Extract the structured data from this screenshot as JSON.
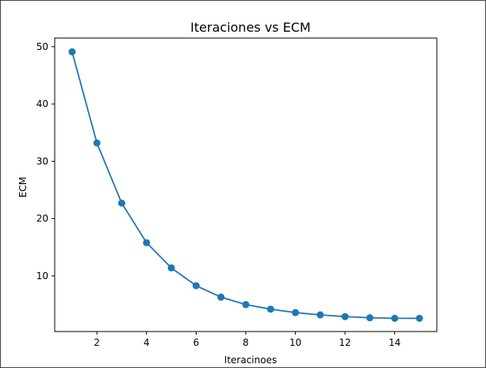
{
  "chart_data": {
    "type": "line",
    "title": "Iteraciones vs  ECM",
    "xlabel": "Iteracinoes",
    "ylabel": "ECM",
    "xlim": [
      0.3,
      15.7
    ],
    "ylim": [
      0.3,
      51.5
    ],
    "xticks": [
      2,
      4,
      6,
      8,
      10,
      12,
      14
    ],
    "yticks": [
      10,
      20,
      30,
      40,
      50
    ],
    "grid": false,
    "marker": "circle",
    "series": [
      {
        "color": "#1f77b4",
        "x": [
          1,
          2,
          3,
          4,
          5,
          6,
          7,
          8,
          9,
          10,
          11,
          12,
          13,
          14,
          15
        ],
        "y": [
          49.1,
          33.2,
          22.7,
          15.8,
          11.4,
          8.3,
          6.3,
          5.0,
          4.2,
          3.6,
          3.2,
          2.9,
          2.7,
          2.6,
          2.6
        ]
      }
    ]
  }
}
